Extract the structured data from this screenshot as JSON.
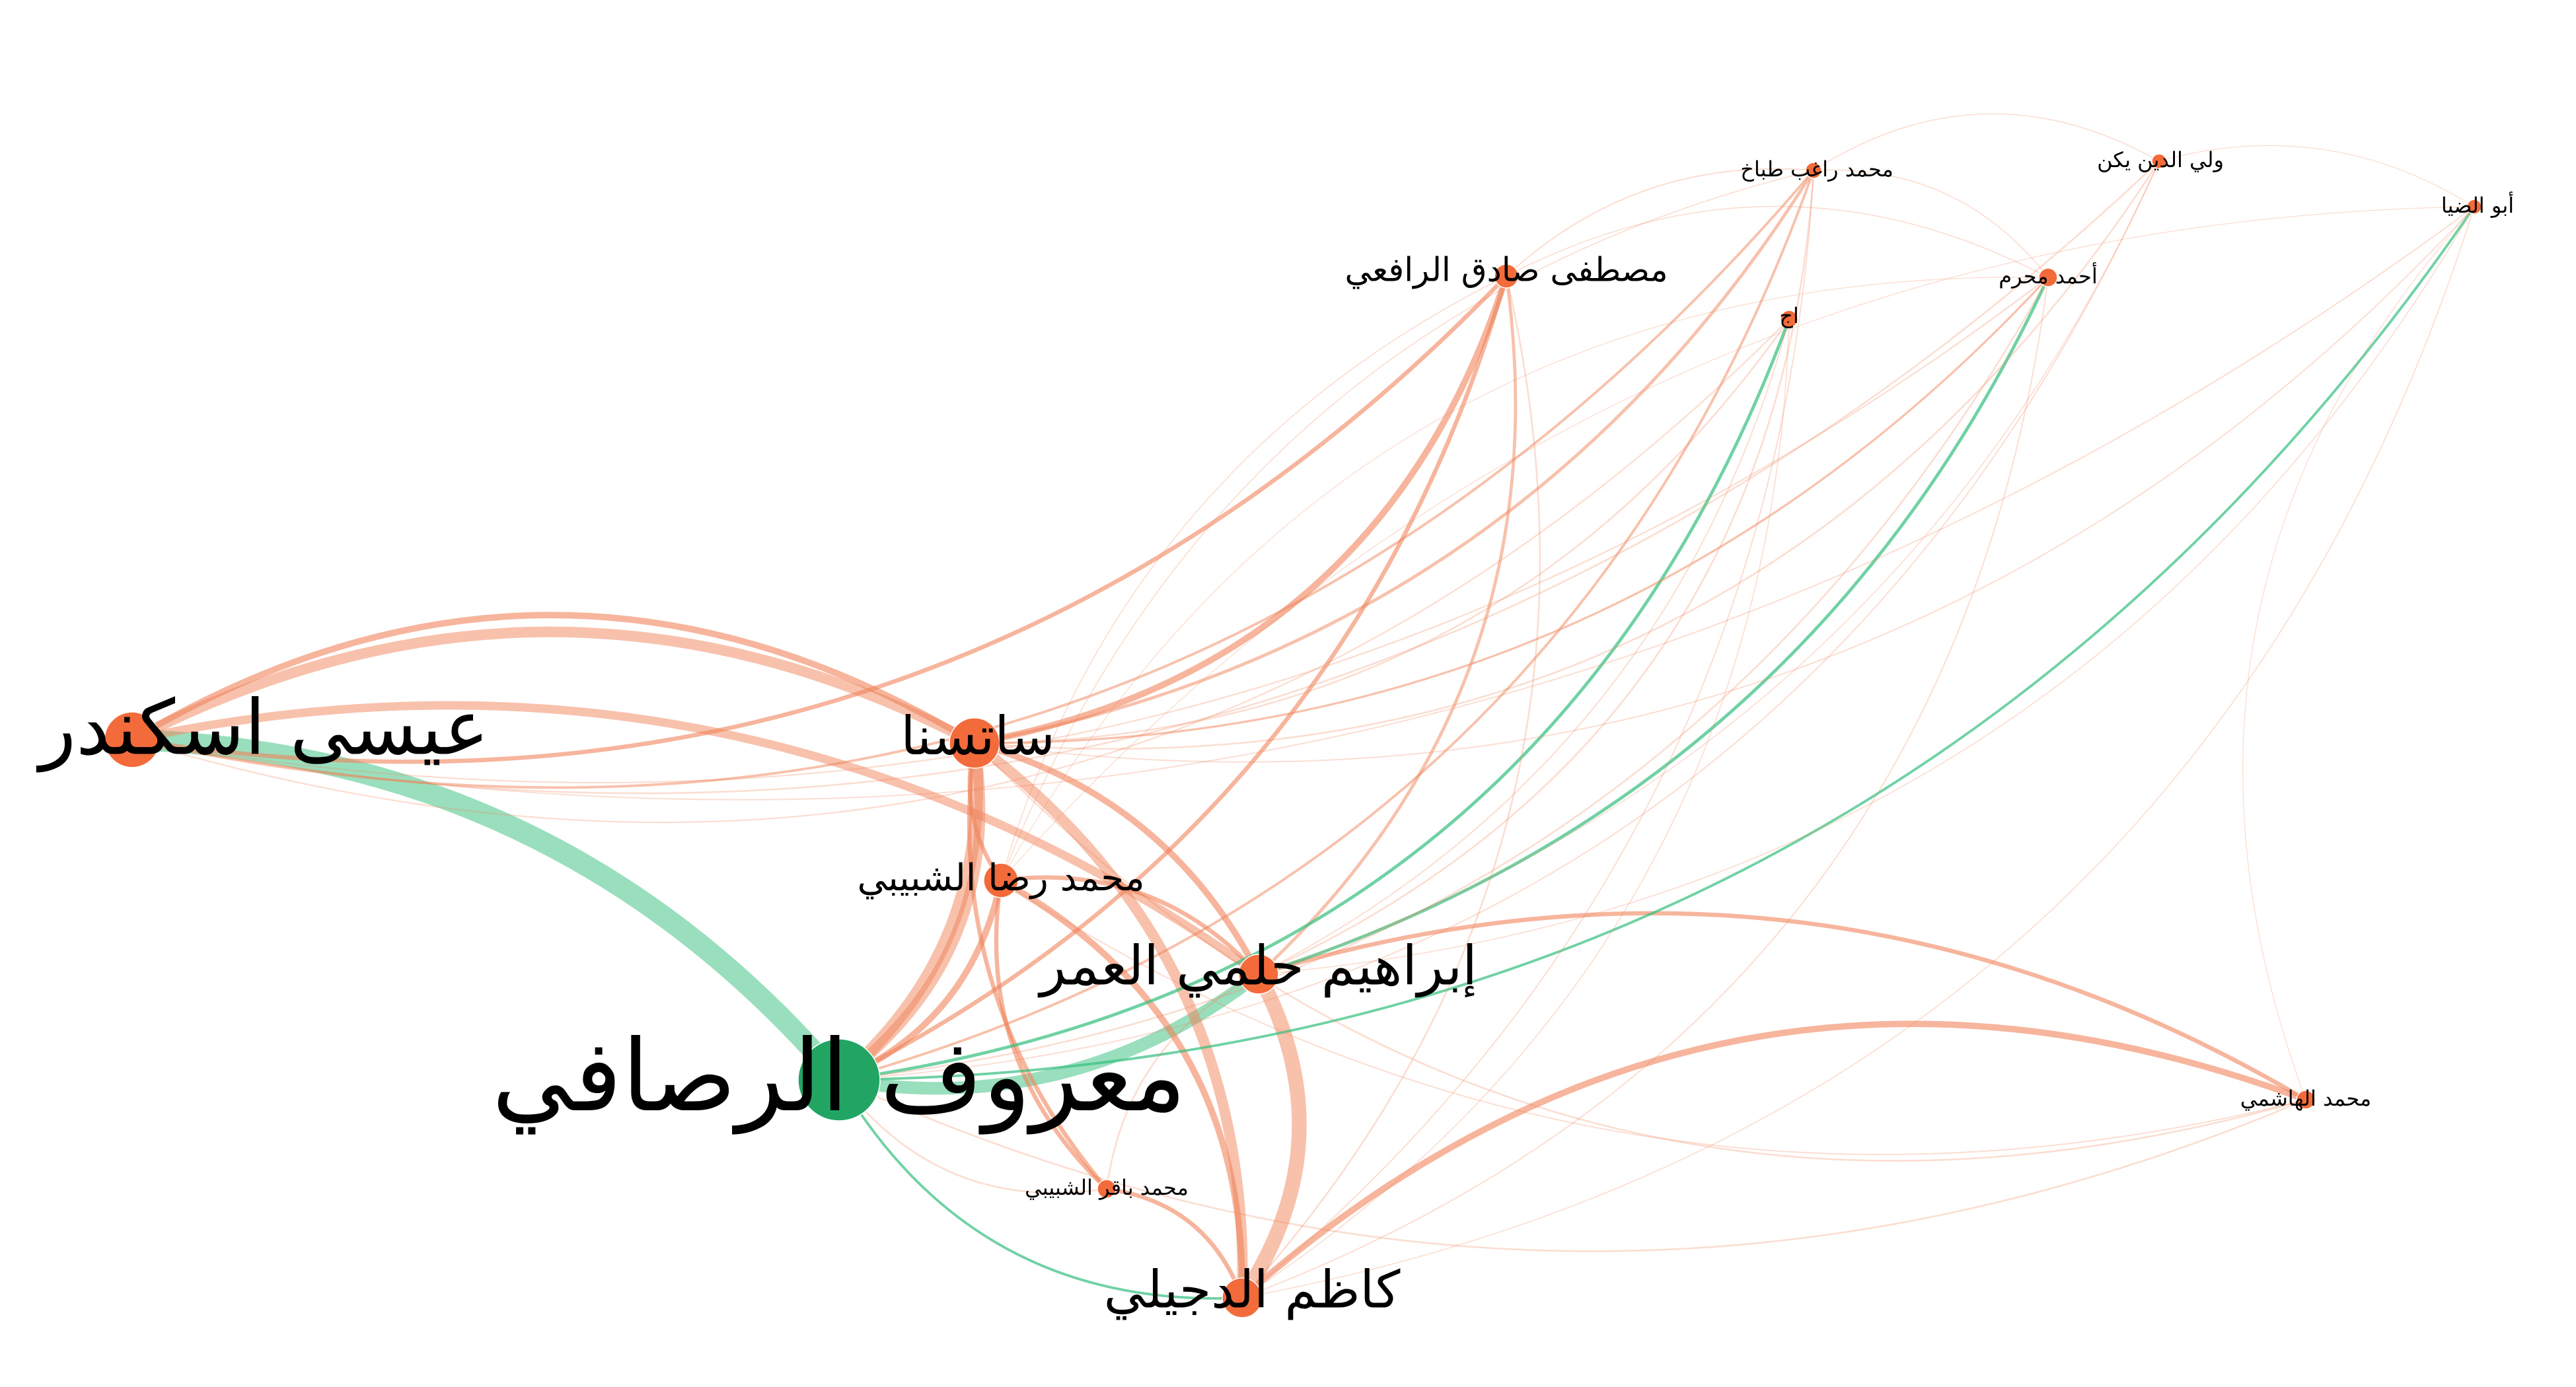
{
  "colors": {
    "orange_node": "#f36b3b",
    "green_node": "#22a562",
    "orange_edge": "#f0845a",
    "green_edge": "#33bf7d"
  },
  "nodes": [
    {
      "id": "rusafi",
      "label": "معروف الرصافي",
      "group": "green",
      "size": "largest"
    },
    {
      "id": "iskandar",
      "label": "عيسى اسكندر",
      "group": "orange",
      "size": "large"
    },
    {
      "id": "satsina",
      "label": "ساتسنا",
      "group": "orange",
      "size": "large"
    },
    {
      "id": "shabibi_rida",
      "label": "محمد رضا الشبيبي",
      "group": "orange",
      "size": "medium"
    },
    {
      "id": "ibrahim",
      "label": "إبراهيم حلمي العمر",
      "group": "orange",
      "size": "large"
    },
    {
      "id": "dujayli",
      "label": "كاظم الدجيلي",
      "group": "orange",
      "size": "medium"
    },
    {
      "id": "shabibi_baqir",
      "label": "محمد باقر الشبيبي",
      "group": "orange",
      "size": "small"
    },
    {
      "id": "rafii",
      "label": "مصطفى صادق الرافعي",
      "group": "orange",
      "size": "small"
    },
    {
      "id": "tabbakh",
      "label": "محمد راغب طباخ",
      "group": "orange",
      "size": "small"
    },
    {
      "id": "aj",
      "label": "اج",
      "group": "orange",
      "size": "small"
    },
    {
      "id": "muharram",
      "label": "أحمد محرم",
      "group": "orange",
      "size": "small"
    },
    {
      "id": "waliyuddin",
      "label": "ولي الدين يكن",
      "group": "orange",
      "size": "small"
    },
    {
      "id": "abualdiya",
      "label": "أبو الضيا",
      "group": "orange",
      "size": "small"
    },
    {
      "id": "hashimi",
      "label": "محمد الهاشمي",
      "group": "orange",
      "size": "small"
    }
  ],
  "edges": [
    {
      "source": "iskandar",
      "target": "rusafi",
      "weight": 10,
      "color": "green"
    },
    {
      "source": "satsina",
      "target": "rusafi",
      "weight": 6,
      "color": "orange"
    },
    {
      "source": "satsina",
      "target": "rusafi",
      "weight": 5,
      "color": "orange"
    },
    {
      "source": "ibrahim",
      "target": "rusafi",
      "weight": 6,
      "color": "green"
    },
    {
      "source": "iskandar",
      "target": "satsina",
      "weight": 5,
      "color": "orange"
    },
    {
      "source": "iskandar",
      "target": "satsina",
      "weight": 3,
      "color": "orange"
    },
    {
      "source": "iskandar",
      "target": "ibrahim",
      "weight": 4,
      "color": "orange"
    },
    {
      "source": "satsina",
      "target": "dujayli",
      "weight": 5,
      "color": "orange"
    },
    {
      "source": "ibrahim",
      "target": "dujayli",
      "weight": 7,
      "color": "orange"
    },
    {
      "source": "satsina",
      "target": "ibrahim",
      "weight": 3,
      "color": "orange"
    },
    {
      "source": "shabibi_rida",
      "target": "rusafi",
      "weight": 3,
      "color": "orange"
    },
    {
      "source": "shabibi_rida",
      "target": "dujayli",
      "weight": 3,
      "color": "orange"
    },
    {
      "source": "shabibi_rida",
      "target": "satsina",
      "weight": 2,
      "color": "orange"
    },
    {
      "source": "shabibi_rida",
      "target": "ibrahim",
      "weight": 2,
      "color": "orange"
    },
    {
      "source": "shabibi_baqir",
      "target": "dujayli",
      "weight": 2,
      "color": "orange"
    },
    {
      "source": "shabibi_baqir",
      "target": "satsina",
      "weight": 2,
      "color": "orange"
    },
    {
      "source": "shabibi_baqir",
      "target": "shabibi_rida",
      "weight": 2,
      "color": "orange"
    },
    {
      "source": "dujayli",
      "target": "hashimi",
      "weight": 3,
      "color": "orange"
    },
    {
      "source": "ibrahim",
      "target": "hashimi",
      "weight": 2,
      "color": "orange"
    },
    {
      "source": "rafii",
      "target": "iskandar",
      "weight": 2,
      "color": "orange"
    },
    {
      "source": "rafii",
      "target": "satsina",
      "weight": 3,
      "color": "orange"
    },
    {
      "source": "rafii",
      "target": "rusafi",
      "weight": 2,
      "color": "orange"
    },
    {
      "source": "rafii",
      "target": "ibrahim",
      "weight": 1.5,
      "color": "orange"
    },
    {
      "source": "tabbakh",
      "target": "iskandar",
      "weight": 1.2,
      "color": "orange"
    },
    {
      "source": "tabbakh",
      "target": "satsina",
      "weight": 1.5,
      "color": "orange"
    },
    {
      "source": "tabbakh",
      "target": "rusafi",
      "weight": 1.2,
      "color": "orange"
    },
    {
      "source": "aj",
      "target": "rusafi",
      "weight": 1.5,
      "color": "green"
    },
    {
      "source": "muharram",
      "target": "ibrahim",
      "weight": 1.5,
      "color": "green"
    },
    {
      "source": "abualdiya",
      "target": "rusafi",
      "weight": 1.2,
      "color": "green"
    },
    {
      "source": "dujayli",
      "target": "rusafi",
      "weight": 1.2,
      "color": "green"
    },
    {
      "source": "muharram",
      "target": "satsina",
      "weight": 1,
      "color": "orange"
    },
    {
      "source": "waliyuddin",
      "target": "iskandar",
      "weight": 0.8,
      "color": "orange"
    },
    {
      "source": "waliyuddin",
      "target": "satsina",
      "weight": 0.8,
      "color": "orange"
    },
    {
      "source": "abualdiya",
      "target": "iskandar",
      "weight": 0.6,
      "color": "orange"
    },
    {
      "source": "abualdiya",
      "target": "satsina",
      "weight": 0.6,
      "color": "orange"
    },
    {
      "source": "hashimi",
      "target": "satsina",
      "weight": 0.8,
      "color": "orange"
    },
    {
      "source": "hashimi",
      "target": "rusafi",
      "weight": 0.8,
      "color": "orange"
    },
    {
      "source": "aj",
      "target": "satsina",
      "weight": 0.8,
      "color": "orange"
    },
    {
      "source": "aj",
      "target": "iskandar",
      "weight": 0.7,
      "color": "orange"
    },
    {
      "source": "muharram",
      "target": "iskandar",
      "weight": 0.7,
      "color": "orange"
    },
    {
      "source": "muharram",
      "target": "rusafi",
      "weight": 0.8,
      "color": "orange"
    },
    {
      "source": "tabbakh",
      "target": "ibrahim",
      "weight": 0.8,
      "color": "orange"
    },
    {
      "source": "tabbakh",
      "target": "dujayli",
      "weight": 0.6,
      "color": "orange"
    },
    {
      "source": "rafii",
      "target": "dujayli",
      "weight": 0.8,
      "color": "orange"
    },
    {
      "source": "waliyuddin",
      "target": "rusafi",
      "weight": 0.6,
      "color": "orange"
    },
    {
      "source": "waliyuddin",
      "target": "ibrahim",
      "weight": 0.5,
      "color": "orange"
    },
    {
      "source": "abualdiya",
      "target": "ibrahim",
      "weight": 0.5,
      "color": "orange"
    },
    {
      "source": "abualdiya",
      "target": "dujayli",
      "weight": 0.5,
      "color": "orange"
    },
    {
      "source": "aj",
      "target": "ibrahim",
      "weight": 0.6,
      "color": "orange"
    },
    {
      "source": "aj",
      "target": "dujayli",
      "weight": 0.5,
      "color": "orange"
    },
    {
      "source": "muharram",
      "target": "dujayli",
      "weight": 0.6,
      "color": "orange"
    },
    {
      "source": "rafii",
      "target": "tabbakh",
      "weight": 0.6,
      "color": "orange"
    },
    {
      "source": "tabbakh",
      "target": "muharram",
      "weight": 0.5,
      "color": "orange"
    },
    {
      "source": "tabbakh",
      "target": "waliyuddin",
      "weight": 0.5,
      "color": "orange"
    },
    {
      "source": "waliyuddin",
      "target": "abualdiya",
      "weight": 0.4,
      "color": "orange"
    },
    {
      "source": "rafii",
      "target": "muharram",
      "weight": 0.5,
      "color": "orange"
    },
    {
      "source": "hashimi",
      "target": "abualdiya",
      "weight": 0.4,
      "color": "orange"
    },
    {
      "source": "hashimi",
      "target": "shabibi_rida",
      "weight": 0.6,
      "color": "orange"
    },
    {
      "source": "shabibi_baqir",
      "target": "ibrahim",
      "weight": 0.8,
      "color": "orange"
    },
    {
      "source": "shabibi_baqir",
      "target": "rusafi",
      "weight": 0.8,
      "color": "orange"
    },
    {
      "source": "shabibi_rida",
      "target": "rafii",
      "weight": 0.5,
      "color": "orange"
    },
    {
      "source": "shabibi_rida",
      "target": "tabbakh",
      "weight": 0.5,
      "color": "orange"
    },
    {
      "source": "shabibi_rida",
      "target": "muharram",
      "weight": 0.4,
      "color": "orange"
    },
    {
      "source": "shabibi_rida",
      "target": "abualdiya",
      "weight": 0.4,
      "color": "orange"
    }
  ]
}
